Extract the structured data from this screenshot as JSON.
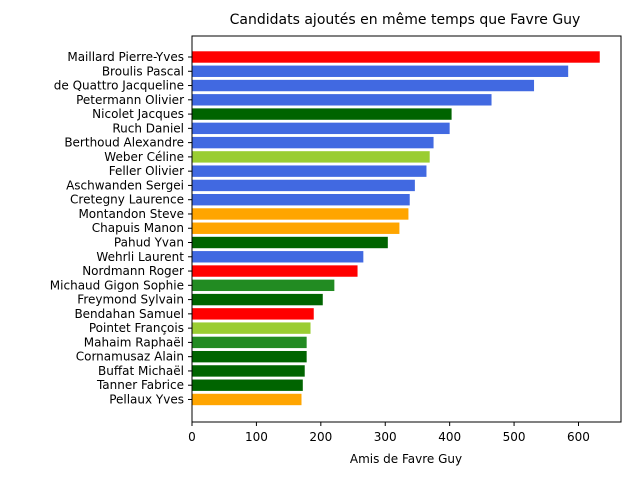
{
  "chart_data": {
    "type": "bar",
    "orientation": "horizontal",
    "title": "Candidats ajoutés en même temps que Favre Guy",
    "xlabel": "Amis de Favre Guy",
    "ylabel": "",
    "xlim": [
      0,
      666
    ],
    "xticks": [
      0,
      100,
      200,
      300,
      400,
      500,
      600
    ],
    "grid": false,
    "bars": [
      {
        "label": "Maillard Pierre-Yves",
        "value": 633,
        "color": "#ff0000"
      },
      {
        "label": "Broulis Pascal",
        "value": 584,
        "color": "#4169e1"
      },
      {
        "label": "de Quattro Jacqueline",
        "value": 531,
        "color": "#4169e1"
      },
      {
        "label": "Petermann Olivier",
        "value": 465,
        "color": "#4169e1"
      },
      {
        "label": "Nicolet Jacques",
        "value": 403,
        "color": "#006400"
      },
      {
        "label": "Ruch Daniel",
        "value": 400,
        "color": "#4169e1"
      },
      {
        "label": "Berthoud Alexandre",
        "value": 375,
        "color": "#4169e1"
      },
      {
        "label": "Weber Céline",
        "value": 369,
        "color": "#9acd32"
      },
      {
        "label": "Feller Olivier",
        "value": 364,
        "color": "#4169e1"
      },
      {
        "label": "Aschwanden Sergei",
        "value": 346,
        "color": "#4169e1"
      },
      {
        "label": "Cretegny Laurence",
        "value": 338,
        "color": "#4169e1"
      },
      {
        "label": "Montandon Steve",
        "value": 336,
        "color": "#ffa500"
      },
      {
        "label": "Chapuis Manon",
        "value": 322,
        "color": "#ffa500"
      },
      {
        "label": "Pahud Yvan",
        "value": 304,
        "color": "#006400"
      },
      {
        "label": "Wehrli Laurent",
        "value": 266,
        "color": "#4169e1"
      },
      {
        "label": "Nordmann Roger",
        "value": 257,
        "color": "#ff0000"
      },
      {
        "label": "Michaud Gigon Sophie",
        "value": 221,
        "color": "#228b22"
      },
      {
        "label": "Freymond Sylvain",
        "value": 203,
        "color": "#006400"
      },
      {
        "label": "Bendahan Samuel",
        "value": 189,
        "color": "#ff0000"
      },
      {
        "label": "Pointet François",
        "value": 184,
        "color": "#9acd32"
      },
      {
        "label": "Mahaim Raphaël",
        "value": 178,
        "color": "#228b22"
      },
      {
        "label": "Cornamusaz Alain",
        "value": 178,
        "color": "#006400"
      },
      {
        "label": "Buffat Michaël",
        "value": 175,
        "color": "#006400"
      },
      {
        "label": "Tanner Fabrice",
        "value": 172,
        "color": "#006400"
      },
      {
        "label": "Pellaux Yves",
        "value": 170,
        "color": "#ffa500"
      }
    ]
  }
}
